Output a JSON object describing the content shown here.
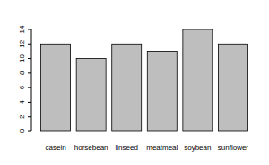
{
  "chart_data": {
    "type": "bar",
    "categories": [
      "casein",
      "horsebean",
      "linseed",
      "meatmeal",
      "soybean",
      "sunflower"
    ],
    "values": [
      12,
      10,
      12,
      11,
      14,
      12
    ],
    "color": "#bebebe",
    "ylim": [
      0,
      14
    ],
    "yticks": [
      0,
      2,
      4,
      6,
      8,
      10,
      12,
      14
    ]
  }
}
